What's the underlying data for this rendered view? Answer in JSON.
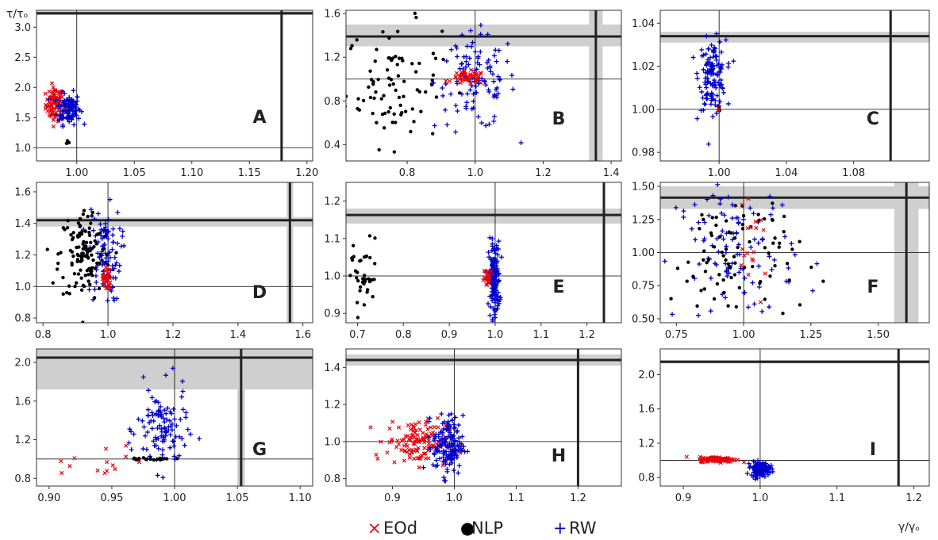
{
  "chart_data": {
    "type": "scatter",
    "title": "",
    "xlabel": "γ/γₒ",
    "ylabel": "τ/τₒ",
    "series_colors": {
      "EOd": "#e8000b",
      "NLP": "#000000",
      "RW": "#0000cc"
    },
    "legend": {
      "placement": "bottom-center",
      "entries": [
        {
          "name": "EOd",
          "marker": "×",
          "color": "#e8000b"
        },
        {
          "name": "NLP",
          "marker": "●",
          "color": "#000000"
        },
        {
          "name": "RW",
          "marker": "+",
          "color": "#0000cc"
        }
      ]
    },
    "panels": [
      {
        "id": "A",
        "xlim": [
          0.965,
          1.205
        ],
        "ylim": [
          0.78,
          3.28
        ],
        "xticks": [
          1.0,
          1.05,
          1.1,
          1.15,
          1.2
        ],
        "xtick_labels": [
          "1.00",
          "1.05",
          "1.10",
          "1.15",
          "1.20"
        ],
        "yticks": [
          1.0,
          1.5,
          2.0,
          2.5,
          3.0
        ],
        "ytick_labels": [
          "1.0",
          "1.5",
          "2.0",
          "2.5",
          "3.0"
        ],
        "ref_x": 1.178,
        "ref_y": 3.23,
        "band_x": null,
        "band_y": [
          3.2,
          3.27
        ],
        "clusters": [
          {
            "series": "EOd",
            "n": 90,
            "cx": 0.981,
            "cy": 1.72,
            "sx": 0.004,
            "sy": 0.14
          },
          {
            "series": "RW",
            "n": 110,
            "cx": 0.993,
            "cy": 1.65,
            "sx": 0.005,
            "sy": 0.13
          },
          {
            "series": "NLP",
            "n": 4,
            "cx": 0.992,
            "cy": 1.08,
            "sx": 0.001,
            "sy": 0.015
          }
        ]
      },
      {
        "id": "B",
        "xlim": [
          0.62,
          1.43
        ],
        "ylim": [
          0.25,
          1.63
        ],
        "xticks": [
          0.8,
          1.0,
          1.2,
          1.4
        ],
        "xtick_labels": [
          "0.8",
          "1.0",
          "1.2",
          "1.4"
        ],
        "yticks": [
          0.4,
          0.8,
          1.2,
          1.6
        ],
        "ytick_labels": [
          "0.4",
          "0.8",
          "1.2",
          "1.6"
        ],
        "ref_x": 1.355,
        "ref_y": 1.39,
        "band_x": [
          1.335,
          1.375
        ],
        "band_y": [
          1.3,
          1.5
        ],
        "clusters": [
          {
            "series": "NLP",
            "n": 85,
            "cx": 0.76,
            "cy": 0.95,
            "sx": 0.07,
            "sy": 0.28
          },
          {
            "series": "RW",
            "n": 110,
            "cx": 1.0,
            "cy": 0.98,
            "sx": 0.06,
            "sy": 0.22
          },
          {
            "series": "EOd",
            "n": 45,
            "cx": 0.98,
            "cy": 1.01,
            "sx": 0.025,
            "sy": 0.03
          }
        ]
      },
      {
        "id": "C",
        "xlim": [
          0.965,
          1.125
        ],
        "ylim": [
          0.976,
          1.046
        ],
        "xticks": [
          1.0,
          1.04,
          1.08
        ],
        "xtick_labels": [
          "1.00",
          "1.04",
          "1.08"
        ],
        "yticks": [
          0.98,
          1.0,
          1.02,
          1.04
        ],
        "ytick_labels": [
          "0.98",
          "1.00",
          "1.02",
          "1.04"
        ],
        "ref_x": 1.102,
        "ref_y": 1.034,
        "band_x": null,
        "band_y": [
          1.031,
          1.036
        ],
        "clusters": [
          {
            "series": "RW",
            "n": 130,
            "cx": 0.996,
            "cy": 1.016,
            "sx": 0.004,
            "sy": 0.008
          },
          {
            "series": "NLP",
            "n": 3,
            "cx": 1.0,
            "cy": 1.0,
            "sx": 0.0005,
            "sy": 0.0005
          },
          {
            "series": "EOd",
            "n": 2,
            "cx": 1.0,
            "cy": 1.0,
            "sx": 0.0005,
            "sy": 0.0005
          }
        ]
      },
      {
        "id": "D",
        "xlim": [
          0.78,
          1.63
        ],
        "ylim": [
          0.77,
          1.66
        ],
        "xticks": [
          0.8,
          1.0,
          1.2,
          1.4,
          1.6
        ],
        "xtick_labels": [
          "0.8",
          "1.0",
          "1.2",
          "1.4",
          "1.6"
        ],
        "yticks": [
          0.8,
          1.0,
          1.2,
          1.4,
          1.6
        ],
        "ytick_labels": [
          "0.8",
          "1.0",
          "1.2",
          "1.4",
          "1.6"
        ],
        "ref_x": 1.56,
        "ref_y": 1.42,
        "band_x": [
          1.55,
          1.57
        ],
        "band_y": [
          1.38,
          1.44
        ],
        "clusters": [
          {
            "series": "NLP",
            "n": 130,
            "cx": 0.93,
            "cy": 1.2,
            "sx": 0.04,
            "sy": 0.15
          },
          {
            "series": "RW",
            "n": 90,
            "cx": 0.99,
            "cy": 1.2,
            "sx": 0.025,
            "sy": 0.15
          },
          {
            "series": "EOd",
            "n": 30,
            "cx": 0.995,
            "cy": 1.05,
            "sx": 0.006,
            "sy": 0.04
          }
        ]
      },
      {
        "id": "E",
        "xlim": [
          0.675,
          1.275
        ],
        "ylim": [
          0.875,
          1.25
        ],
        "xticks": [
          0.7,
          0.8,
          0.9,
          1.0,
          1.1,
          1.2
        ],
        "xtick_labels": [
          "0.7",
          "0.8",
          "0.9",
          "1.0",
          "1.1",
          "1.2"
        ],
        "yticks": [
          0.9,
          1.0,
          1.1,
          1.2
        ],
        "ytick_labels": [
          "0.9",
          "1.0",
          "1.1",
          "1.2"
        ],
        "ref_x": 1.237,
        "ref_y": 1.163,
        "band_x": null,
        "band_y": [
          1.14,
          1.18
        ],
        "clusters": [
          {
            "series": "NLP",
            "n": 40,
            "cx": 0.71,
            "cy": 1.0,
            "sx": 0.02,
            "sy": 0.05
          },
          {
            "series": "RW",
            "n": 160,
            "cx": 0.998,
            "cy": 0.99,
            "sx": 0.006,
            "sy": 0.05
          },
          {
            "series": "EOd",
            "n": 25,
            "cx": 0.985,
            "cy": 0.995,
            "sx": 0.005,
            "sy": 0.012
          }
        ]
      },
      {
        "id": "F",
        "xlim": [
          0.69,
          1.69
        ],
        "ylim": [
          0.47,
          1.53
        ],
        "xticks": [
          0.75,
          1.0,
          1.25,
          1.5
        ],
        "xtick_labels": [
          "0.75",
          "1.00",
          "1.25",
          "1.50"
        ],
        "yticks": [
          0.5,
          0.75,
          1.0,
          1.25,
          1.5
        ],
        "ytick_labels": [
          "0.50",
          "0.75",
          "1.00",
          "1.25",
          "1.50"
        ],
        "ref_x": 1.605,
        "ref_y": 1.415,
        "band_x": [
          1.56,
          1.65
        ],
        "band_y": [
          1.33,
          1.5
        ],
        "clusters": [
          {
            "series": "RW",
            "n": 110,
            "cx": 0.97,
            "cy": 1.0,
            "sx": 0.11,
            "sy": 0.27
          },
          {
            "series": "NLP",
            "n": 90,
            "cx": 0.97,
            "cy": 0.98,
            "sx": 0.12,
            "sy": 0.27
          },
          {
            "series": "EOd",
            "n": 18,
            "cx": 1.03,
            "cy": 1.0,
            "sx": 0.03,
            "sy": 0.15
          }
        ]
      },
      {
        "id": "G",
        "xlim": [
          0.89,
          1.11
        ],
        "ylim": [
          0.72,
          2.14
        ],
        "xticks": [
          0.9,
          0.95,
          1.0,
          1.05,
          1.1
        ],
        "xtick_labels": [
          "0.90",
          "0.95",
          "1.00",
          "1.05",
          "1.10"
        ],
        "yticks": [
          0.8,
          1.2,
          1.6,
          2.0
        ],
        "ytick_labels": [
          "0.8",
          "1.2",
          "1.6",
          "2.0"
        ],
        "ref_x": 1.053,
        "ref_y": 2.05,
        "band_x": [
          1.05,
          1.056
        ],
        "band_y": [
          1.72,
          2.14
        ],
        "clusters": [
          {
            "series": "RW",
            "n": 110,
            "cx": 0.99,
            "cy": 1.3,
            "sx": 0.01,
            "sy": 0.22
          },
          {
            "series": "NLP",
            "n": 20,
            "cx": 0.98,
            "cy": 1.0,
            "sx": 0.01,
            "sy": 0.005
          },
          {
            "series": "EOd",
            "n": 14,
            "cx": 0.95,
            "cy": 1.0,
            "sx": 0.03,
            "sy": 0.1
          }
        ]
      },
      {
        "id": "H",
        "xlim": [
          0.825,
          1.27
        ],
        "ylim": [
          0.76,
          1.5
        ],
        "xticks": [
          0.9,
          1.0,
          1.1,
          1.2
        ],
        "xtick_labels": [
          "0.9",
          "1.0",
          "1.1",
          "1.2"
        ],
        "yticks": [
          0.8,
          1.0,
          1.2,
          1.4
        ],
        "ytick_labels": [
          "0.8",
          "1.0",
          "1.2",
          "1.4"
        ],
        "ref_x": 1.2,
        "ref_y": 1.44,
        "band_x": null,
        "band_y": [
          1.41,
          1.47
        ],
        "clusters": [
          {
            "series": "EOd",
            "n": 130,
            "cx": 0.94,
            "cy": 1.0,
            "sx": 0.025,
            "sy": 0.06
          },
          {
            "series": "RW",
            "n": 150,
            "cx": 0.99,
            "cy": 0.98,
            "sx": 0.012,
            "sy": 0.08
          }
        ]
      },
      {
        "id": "I",
        "xlim": [
          0.87,
          1.22
        ],
        "ylim": [
          0.7,
          2.3
        ],
        "xticks": [
          0.9,
          1.0,
          1.1,
          1.2
        ],
        "xtick_labels": [
          "0.9",
          "1.0",
          "1.1",
          "1.2"
        ],
        "yticks": [
          0.8,
          1.2,
          1.6,
          2.0
        ],
        "ytick_labels": [
          "0.8",
          "1.2",
          "1.6",
          "2.0"
        ],
        "ref_x": 1.18,
        "ref_y": 2.15,
        "band_x": null,
        "band_y": [
          2.13,
          2.17
        ],
        "clusters": [
          {
            "series": "EOd",
            "n": 130,
            "cx": 0.945,
            "cy": 1.01,
            "sx": 0.012,
            "sy": 0.015
          },
          {
            "series": "RW",
            "n": 170,
            "cx": 1.0,
            "cy": 0.9,
            "sx": 0.006,
            "sy": 0.04
          }
        ]
      }
    ]
  }
}
